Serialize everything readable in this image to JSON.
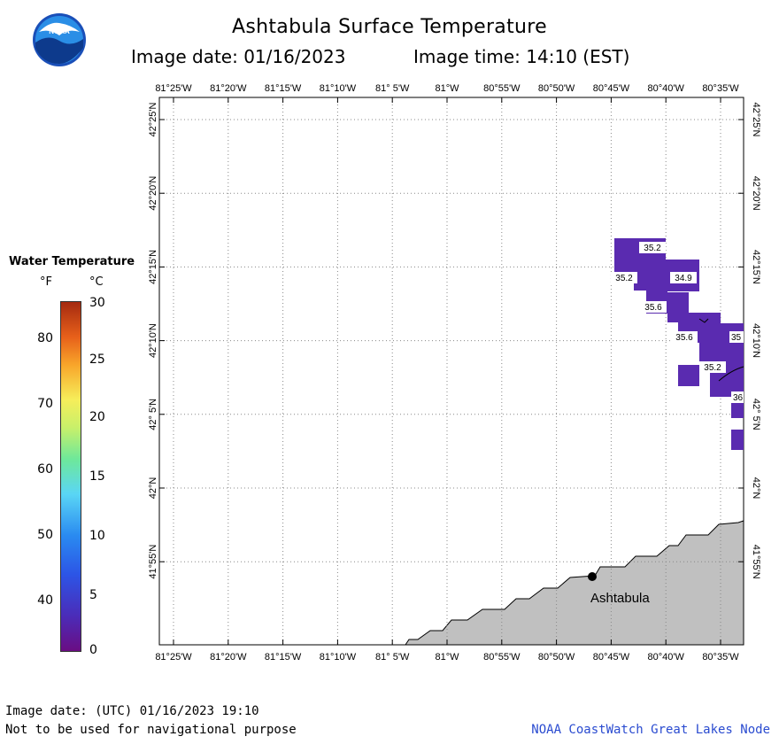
{
  "title": "Ashtabula Surface Temperature",
  "image_date": "Image date: 01/16/2023",
  "image_time": "Image time: 14:10 (EST)",
  "logo_text": "NOAA",
  "lon_labels": [
    "81°25'W",
    "81°20'W",
    "81°15'W",
    "81°10'W",
    "81° 5'W",
    "81°W",
    "80°55'W",
    "80°50'W",
    "80°45'W",
    "80°40'W",
    "80°35'W"
  ],
  "lat_labels": [
    "42°25'N",
    "42°20'N",
    "42°15'N",
    "42°10'N",
    "42° 5'N",
    "42°N",
    "41°55'N"
  ],
  "legend": {
    "title": "Water Temperature",
    "unit_f": "°F",
    "unit_c": "°C",
    "f_ticks": [
      "80",
      "70",
      "60",
      "50",
      "40"
    ],
    "c_ticks": [
      "30",
      "25",
      "20",
      "15",
      "10",
      "5",
      "0"
    ]
  },
  "temperature_labels": [
    "35.2",
    "35.2",
    "34.9",
    "35.6",
    "35.6",
    "35",
    "35.2",
    "36"
  ],
  "city_label": "Ashtabula",
  "footer": {
    "utc_date": "Image date: (UTC) 01/16/2023  19:10",
    "disclaimer": "Not to be used for navigational purpose",
    "credit": "NOAA CoastWatch Great Lakes Node"
  },
  "colors": {
    "water_cells": "#5a2bb0",
    "land": "#c0c0c0",
    "grid": "#888888",
    "credit_text": "#2a4bd0"
  }
}
